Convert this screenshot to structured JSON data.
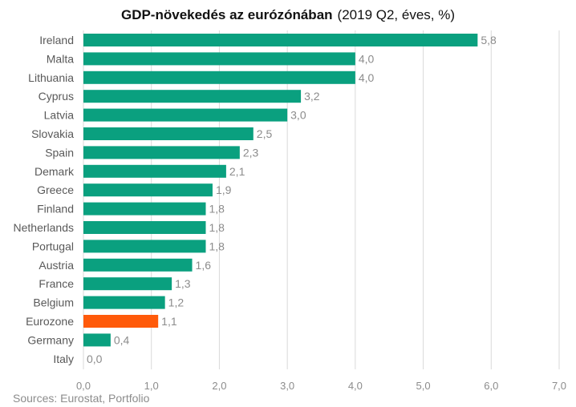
{
  "title_main": "GDP-növekedés az eurózónában",
  "title_sub": "(2019 Q2, éves, %)",
  "source": "Sources: Eurostat, Portfolio",
  "colors": {
    "bar": "#0aa07f",
    "highlight": "#ff5a0a",
    "grid": "#d9d9d9"
  },
  "chart_data": {
    "type": "bar",
    "orientation": "horizontal",
    "title": "GDP-növekedés az eurózónában (2019 Q2, éves, %)",
    "categories": [
      "Ireland",
      "Malta",
      "Lithuania",
      "Cyprus",
      "Latvia",
      "Slovakia",
      "Spain",
      "Demark",
      "Greece",
      "Finland",
      "Netherlands",
      "Portugal",
      "Austria",
      "France",
      "Belgium",
      "Eurozone",
      "Germany",
      "Italy"
    ],
    "values": [
      5.8,
      4.0,
      4.0,
      3.2,
      3.0,
      2.5,
      2.3,
      2.1,
      1.9,
      1.8,
      1.8,
      1.8,
      1.6,
      1.3,
      1.2,
      1.1,
      0.4,
      0.0
    ],
    "value_labels": [
      "5,8",
      "4,0",
      "4,0",
      "3,2",
      "3,0",
      "2,5",
      "2,3",
      "2,1",
      "1,9",
      "1,8",
      "1,8",
      "1,8",
      "1,6",
      "1,3",
      "1,2",
      "1,1",
      "0,4",
      "0,0"
    ],
    "highlight": "Eurozone",
    "xlim": [
      0,
      7
    ],
    "xticks": [
      0,
      1,
      2,
      3,
      4,
      5,
      6,
      7
    ],
    "xtick_labels": [
      "0,0",
      "1,0",
      "2,0",
      "3,0",
      "4,0",
      "5,0",
      "6,0",
      "7,0"
    ],
    "xlabel": "",
    "ylabel": "",
    "grid": "vertical"
  }
}
